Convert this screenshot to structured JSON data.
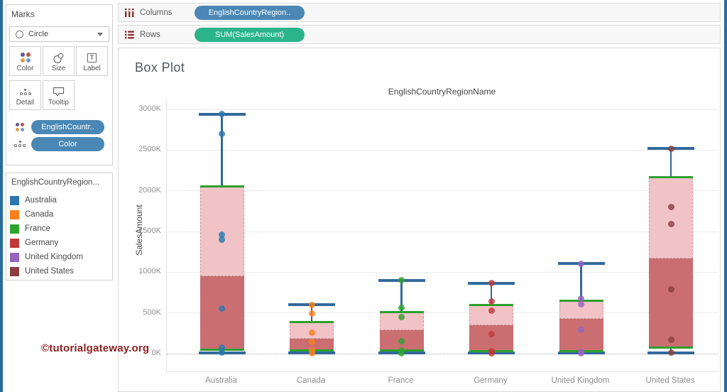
{
  "marks_card": {
    "title": "Marks",
    "mark_type_selected": "Circle",
    "buttons": [
      {
        "label": "Color",
        "icon": "color-dots-icon"
      },
      {
        "label": "Size",
        "icon": "size-circles-icon"
      },
      {
        "label": "Label",
        "icon": "label-t-icon",
        "icon_glyph": "T"
      },
      {
        "label": "Detail",
        "icon": "detail-dots-icon"
      },
      {
        "label": "Tooltip",
        "icon": "tooltip-bubble-icon"
      }
    ],
    "pills": [
      {
        "label": "EnglishCountr..",
        "icon": "color-dots-icon"
      },
      {
        "label": "Color",
        "icon": "detail-dots-icon"
      }
    ]
  },
  "legend": {
    "title": "EnglishCountryRegion...",
    "items": [
      {
        "label": "Australia",
        "color": "#2b77ae",
        "textured": false
      },
      {
        "label": "Canada",
        "color": "#f9801c",
        "textured": false
      },
      {
        "label": "France",
        "color": "#2fa42d",
        "textured": true
      },
      {
        "label": "Germany",
        "color": "#c1393b",
        "textured": false
      },
      {
        "label": "United Kingdom",
        "color": "#9564bd",
        "textured": false
      },
      {
        "label": "United States",
        "color": "#8b3e3f",
        "textured": true
      }
    ]
  },
  "shelves": {
    "columns": {
      "label": "Columns",
      "pill": "EnglishCountryRegion.."
    },
    "rows": {
      "label": "Rows",
      "pill": "SUM(SalesAmount)"
    }
  },
  "sheet": {
    "title": "Box Plot"
  },
  "watermark": "©tutorialgateway.org",
  "colors": {
    "dimension_pill": "#4a87b4",
    "measure_pill": "#2bb489",
    "edge_strip": "#2a6b9e",
    "shelf_icon": "#8a3030",
    "watermark": "#8c1f1f"
  },
  "chart_data": {
    "type": "boxplot",
    "title": "EnglishCountryRegionName",
    "ylabel": "SalesAmount",
    "ylim_k": [
      0,
      3000
    ],
    "yticks": [
      {
        "value_k": 0,
        "label": "0K"
      },
      {
        "value_k": 500,
        "label": "500K"
      },
      {
        "value_k": 1000,
        "label": "1000K"
      },
      {
        "value_k": 1500,
        "label": "1500K"
      },
      {
        "value_k": 2000,
        "label": "2000K"
      },
      {
        "value_k": 2500,
        "label": "2500K"
      },
      {
        "value_k": 3000,
        "label": "3000K"
      }
    ],
    "grid": true,
    "zero_line_style": "dotted",
    "categories": [
      "Australia",
      "Canada",
      "France",
      "Germany",
      "United Kingdom",
      "United States"
    ],
    "style": {
      "box_fill_upper": "#f1c3c7",
      "box_fill_lower": "#cb6e71",
      "whisker_color": "#33699c",
      "hinge_line_color": "#2ca12c"
    },
    "boxes": [
      {
        "category": "Australia",
        "color": "#2b77ae",
        "whisker_top_k": 2940,
        "box_top_k": 2050,
        "median_k": 950,
        "box_bottom_k": 50,
        "whisker_bottom_k": 10,
        "points_k": [
          2940,
          2700,
          1460,
          1400,
          550,
          70,
          10
        ]
      },
      {
        "category": "Canada",
        "color": "#f9801c",
        "whisker_top_k": 600,
        "box_top_k": 390,
        "median_k": 185,
        "box_bottom_k": 35,
        "whisker_bottom_k": 5,
        "points_k": [
          600,
          495,
          255,
          140,
          35,
          5
        ]
      },
      {
        "category": "France",
        "color": "#2fa42d",
        "whisker_top_k": 900,
        "box_top_k": 510,
        "median_k": 290,
        "box_bottom_k": 35,
        "whisker_bottom_k": 5,
        "points_k": [
          900,
          560,
          445,
          150,
          35,
          5
        ]
      },
      {
        "category": "Germany",
        "color": "#c1393b",
        "whisker_top_k": 865,
        "box_top_k": 595,
        "median_k": 350,
        "box_bottom_k": 30,
        "whisker_bottom_k": 5,
        "points_k": [
          865,
          640,
          530,
          240,
          30,
          5
        ]
      },
      {
        "category": "United Kingdom",
        "color": "#9564bd",
        "whisker_top_k": 1105,
        "box_top_k": 650,
        "median_k": 430,
        "box_bottom_k": 30,
        "whisker_bottom_k": 5,
        "points_k": [
          1105,
          675,
          605,
          290,
          25,
          5
        ]
      },
      {
        "category": "United States",
        "color": "#8b3e3f",
        "whisker_top_k": 2520,
        "box_top_k": 2170,
        "median_k": 1165,
        "box_bottom_k": 75,
        "whisker_bottom_k": 10,
        "points_k": [
          2520,
          1800,
          1590,
          790,
          170,
          10
        ]
      }
    ]
  }
}
